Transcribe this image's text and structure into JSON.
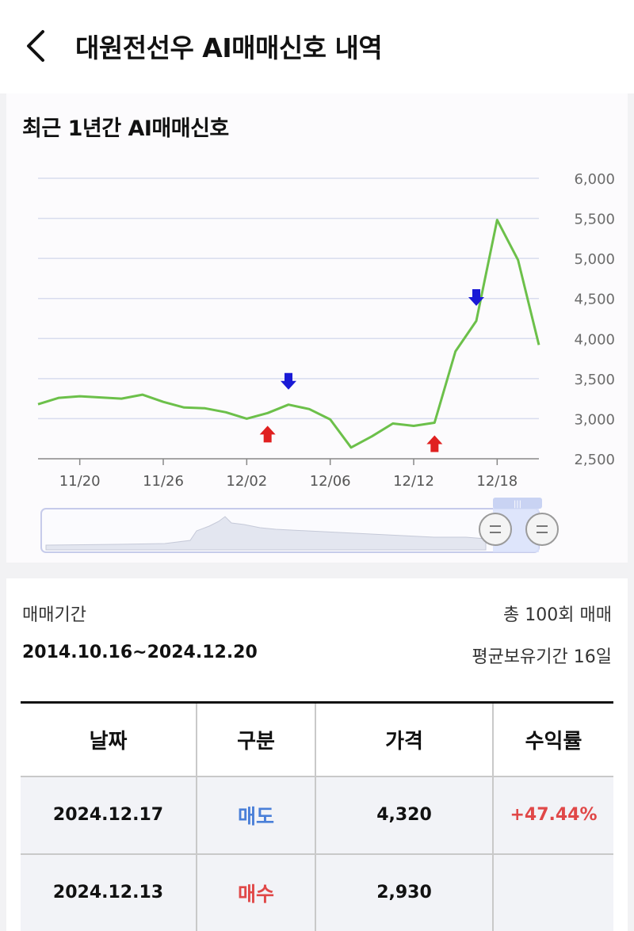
{
  "header": {
    "title": "대원전선우 AI매매신호 내역"
  },
  "chart_section": {
    "title": "최근 1년간 AI매매신호"
  },
  "colors": {
    "line": "#6cc04a",
    "buy": "#e02020",
    "sell": "#1a1ad6",
    "sell_text": "#4a7fd8",
    "buy_text": "#e04848",
    "profit_text": "#e04848"
  },
  "chart_data": {
    "type": "line",
    "title": "",
    "xlabel": "",
    "ylabel": "",
    "ylim": [
      2500,
      6000
    ],
    "yticks": [
      "6,000",
      "5,500",
      "5,000",
      "4,500",
      "4,000",
      "3,500",
      "3,000",
      "2,500"
    ],
    "ytick_values": [
      6000,
      5500,
      5000,
      4500,
      4000,
      3500,
      3000,
      2500
    ],
    "xticks": [
      "11/20",
      "11/26",
      "12/02",
      "12/06",
      "12/12",
      "12/18"
    ],
    "grid": true,
    "series": [
      {
        "values": [
          3180,
          3260,
          3280,
          3265,
          3250,
          3300,
          3210,
          3140,
          3130,
          3080,
          3000,
          3070,
          3175,
          3120,
          2990,
          2640,
          2780,
          2940,
          2910,
          2950,
          3840,
          4220,
          5480,
          4980,
          3920
        ]
      }
    ],
    "signals": [
      {
        "type": "buy",
        "index": 11
      },
      {
        "type": "sell",
        "index": 12
      },
      {
        "type": "buy",
        "index": 19
      },
      {
        "type": "sell",
        "index": 21
      }
    ]
  },
  "summary": {
    "period_label": "매매기간",
    "period_value": "2014.10.16~2024.12.20",
    "total_trades": "총 100회 매매",
    "avg_holding": "평균보유기간 16일"
  },
  "table": {
    "headers": [
      "날짜",
      "구분",
      "가격",
      "수익률"
    ],
    "rows": [
      {
        "date": "2024.12.17",
        "type": "매도",
        "price": "4,320",
        "return": "+47.44%"
      },
      {
        "date": "2024.12.13",
        "type": "매수",
        "price": "2,930",
        "return": ""
      }
    ]
  }
}
